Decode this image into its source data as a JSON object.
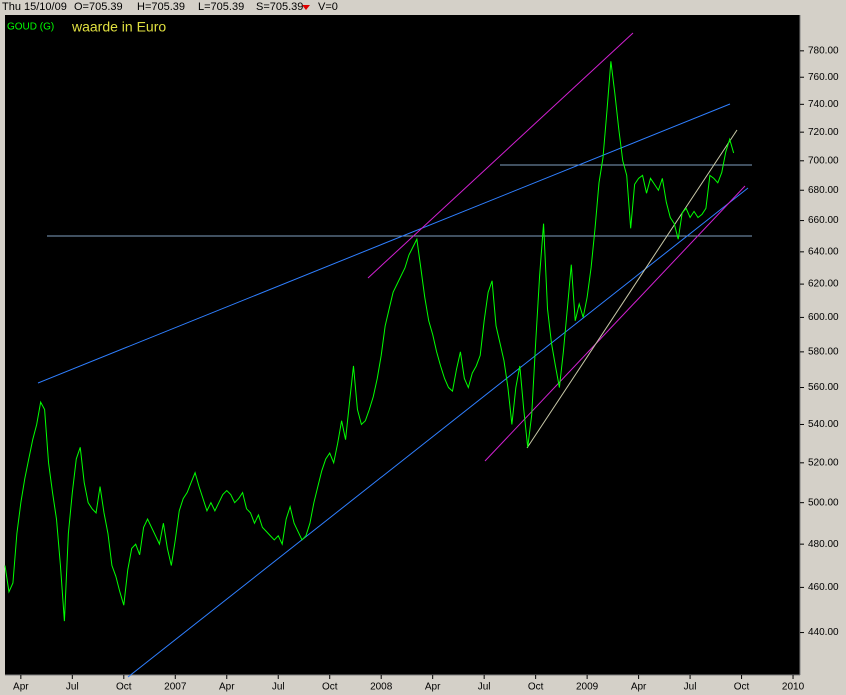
{
  "chart_data": {
    "type": "line",
    "title": "GOUD (G)",
    "subtitle": "waarde in Euro",
    "info_bar": [
      "Thu 15/10/09",
      "O=705.39",
      "H=705.39",
      "L=705.39",
      "S=705.39",
      "V=0"
    ],
    "log_scale": true,
    "grid": false,
    "ylim": [
      422,
      808
    ],
    "yticks": [
      {
        "value": 440,
        "label": "440.00"
      },
      {
        "value": 460,
        "label": "460.00"
      },
      {
        "value": 480,
        "label": "480.00"
      },
      {
        "value": 500,
        "label": "500.00"
      },
      {
        "value": 520,
        "label": "520.00"
      },
      {
        "value": 540,
        "label": "540.00"
      },
      {
        "value": 560,
        "label": "560.00"
      },
      {
        "value": 580,
        "label": "580.00"
      },
      {
        "value": 600,
        "label": "600.00"
      },
      {
        "value": 620,
        "label": "620.00"
      },
      {
        "value": 640,
        "label": "640.00"
      },
      {
        "value": 660,
        "label": "660.00"
      },
      {
        "value": 680,
        "label": "680.00"
      },
      {
        "value": 700,
        "label": "700.00"
      },
      {
        "value": 720,
        "label": "720.00"
      },
      {
        "value": 740,
        "label": "740.00"
      },
      {
        "value": 760,
        "label": "760.00"
      },
      {
        "value": 780,
        "label": "780.00"
      }
    ],
    "categories": [
      null,
      null,
      null,
      null,
      "Apr",
      null,
      null,
      null,
      null,
      null,
      null,
      null,
      null,
      null,
      null,
      null,
      null,
      "Jul",
      null,
      null,
      null,
      null,
      null,
      null,
      null,
      null,
      null,
      null,
      null,
      null,
      "Oct",
      null,
      null,
      null,
      null,
      null,
      null,
      null,
      null,
      null,
      null,
      null,
      null,
      "2007",
      null,
      null,
      null,
      null,
      null,
      null,
      null,
      null,
      null,
      null,
      null,
      null,
      "Apr",
      null,
      null,
      null,
      null,
      null,
      null,
      null,
      null,
      null,
      null,
      null,
      null,
      "Jul",
      null,
      null,
      null,
      null,
      null,
      null,
      null,
      null,
      null,
      null,
      null,
      null,
      "Oct",
      null,
      null,
      null,
      null,
      null,
      null,
      null,
      null,
      null,
      null,
      null,
      null,
      "2008",
      null,
      null,
      null,
      null,
      null,
      null,
      null,
      null,
      null,
      null,
      null,
      null,
      "Apr",
      null,
      null,
      null,
      null,
      null,
      null,
      null,
      null,
      null,
      null,
      null,
      null,
      "Jul",
      null,
      null,
      null,
      null,
      null,
      null,
      null,
      null,
      null,
      null,
      null,
      null,
      "Oct",
      null,
      null,
      null,
      null,
      null,
      null,
      null,
      null,
      null,
      null,
      null,
      null,
      "2009",
      null,
      null,
      null,
      null,
      null,
      null,
      null,
      null,
      null,
      null,
      null,
      null,
      "Apr",
      null,
      null,
      null,
      null,
      null,
      null,
      null,
      null,
      null,
      null,
      null,
      null,
      "Jul",
      null,
      null,
      null,
      null,
      null,
      null,
      null,
      null,
      null,
      null,
      null,
      null,
      "Oct",
      null,
      null,
      null,
      null,
      null,
      null,
      null,
      null,
      null,
      null,
      null,
      null,
      "2010",
      null
    ],
    "series": [
      {
        "name": "GOUD (G)",
        "color": "#00ff00",
        "values": [
          470,
          458,
          462,
          485,
          500,
          512,
          522,
          532,
          540,
          552,
          548,
          520,
          505,
          492,
          470,
          445,
          485,
          505,
          522,
          528,
          510,
          500,
          497,
          495,
          508,
          495,
          485,
          470,
          465,
          458,
          452,
          468,
          478,
          480,
          475,
          488,
          492,
          488,
          484,
          480,
          490,
          478,
          470,
          482,
          496,
          502,
          505,
          510,
          515,
          508,
          502,
          496,
          500,
          496,
          500,
          504,
          506,
          504,
          500,
          502,
          505,
          497,
          495,
          490,
          494,
          488,
          486,
          484,
          482,
          484,
          480,
          492,
          498,
          490,
          486,
          482,
          484,
          490,
          500,
          508,
          516,
          522,
          525,
          520,
          530,
          542,
          532,
          552,
          572,
          548,
          540,
          542,
          548,
          555,
          565,
          578,
          595,
          605,
          615,
          620,
          625,
          630,
          638,
          643,
          648,
          630,
          612,
          598,
          590,
          580,
          572,
          565,
          560,
          558,
          570,
          580,
          565,
          560,
          568,
          572,
          578,
          598,
          615,
          622,
          595,
          585,
          575,
          560,
          540,
          560,
          572,
          548,
          528,
          545,
          585,
          625,
          658,
          605,
          585,
          572,
          560,
          580,
          605,
          632,
          598,
          608,
          600,
          612,
          630,
          655,
          685,
          702,
          735,
          772,
          748,
          722,
          700,
          690,
          655,
          684,
          688,
          690,
          678,
          688,
          684,
          680,
          688,
          672,
          662,
          658,
          648,
          665,
          668,
          662,
          666,
          662,
          664,
          668,
          690,
          688,
          685,
          692,
          706,
          715,
          705.39,
          null,
          null,
          null,
          null,
          null,
          null,
          null,
          null,
          null,
          null,
          null,
          null,
          null,
          null,
          null,
          null
        ]
      }
    ]
  }
}
